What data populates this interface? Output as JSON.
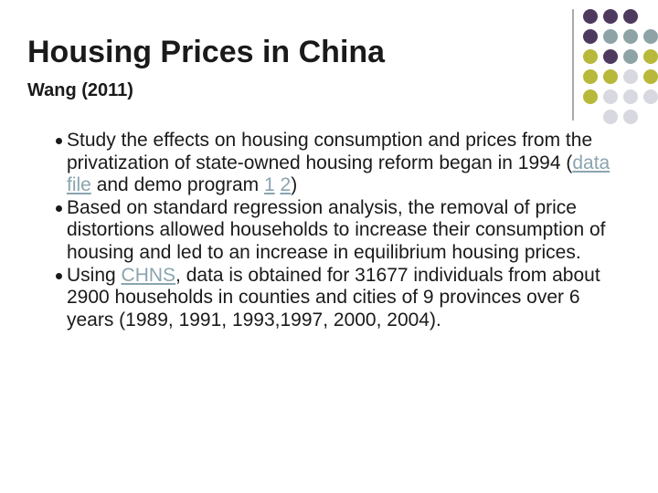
{
  "title": "Housing Prices in China",
  "subtitle": "Wang (2011)",
  "bullets": [
    {
      "segments": [
        {
          "text": "Study the effects on housing consumption and prices from the privatization of state-owned housing reform began in 1994 ("
        },
        {
          "text": "data file",
          "link": true
        },
        {
          "text": " and demo program "
        },
        {
          "text": "1",
          "link": true
        },
        {
          "text": " "
        },
        {
          "text": "2",
          "link": true
        },
        {
          "text": ")"
        }
      ]
    },
    {
      "segments": [
        {
          "text": "Based on standard regression analysis, the removal of price distortions allowed households to increase their consumption of housing and led to an increase in equilibrium housing prices."
        }
      ]
    },
    {
      "segments": [
        {
          "text": "Using "
        },
        {
          "text": "CHNS",
          "link": true
        },
        {
          "text": ", data is obtained for 31677 individuals from about 2900 households in counties and cities of 9 provinces over 6 years (1989, 1991, 1993,1997, 2000, 2004)."
        }
      ]
    }
  ]
}
